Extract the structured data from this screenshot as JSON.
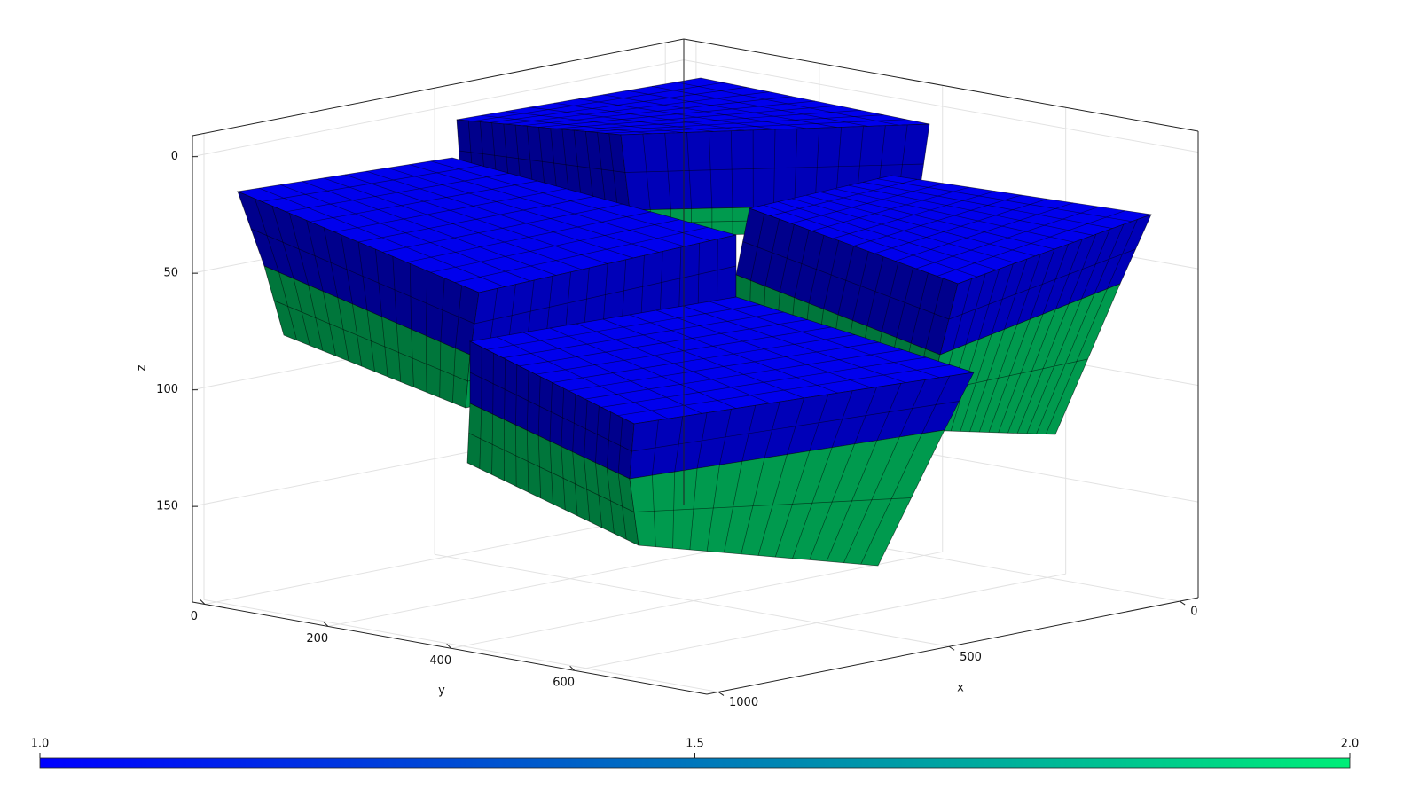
{
  "chart_data": {
    "type": "mesh3d",
    "xlabel": "x",
    "ylabel": "y",
    "zlabel": "z",
    "xlim": [
      -40,
      1025
    ],
    "ylim": [
      -20,
      815
    ],
    "zlim": [
      -9,
      191
    ],
    "xticks": [
      0,
      500,
      1000
    ],
    "yticks": [
      0,
      200,
      400,
      600
    ],
    "zticks": [
      0,
      50,
      100,
      150
    ],
    "z_reversed": true,
    "grid": true,
    "layer_values": [
      1,
      2
    ],
    "colorbar": {
      "clim": [
        1,
        2
      ],
      "colormap": [
        "#0000ff",
        "#00ee78"
      ],
      "ticks": [
        {
          "value": 1,
          "label": "1.0"
        },
        {
          "value": 1.5,
          "label": "1.5"
        },
        {
          "value": 2,
          "label": "2.0"
        }
      ]
    }
  }
}
